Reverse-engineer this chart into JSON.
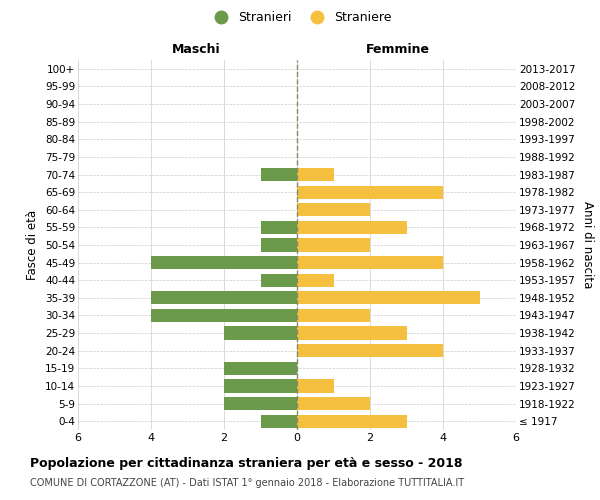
{
  "age_groups": [
    "100+",
    "95-99",
    "90-94",
    "85-89",
    "80-84",
    "75-79",
    "70-74",
    "65-69",
    "60-64",
    "55-59",
    "50-54",
    "45-49",
    "40-44",
    "35-39",
    "30-34",
    "25-29",
    "20-24",
    "15-19",
    "10-14",
    "5-9",
    "0-4"
  ],
  "birth_years": [
    "≤ 1917",
    "1918-1922",
    "1923-1927",
    "1928-1932",
    "1933-1937",
    "1938-1942",
    "1943-1947",
    "1948-1952",
    "1953-1957",
    "1958-1962",
    "1963-1967",
    "1968-1972",
    "1973-1977",
    "1978-1982",
    "1983-1987",
    "1988-1992",
    "1993-1997",
    "1998-2002",
    "2003-2007",
    "2008-2012",
    "2013-2017"
  ],
  "males": [
    0,
    0,
    0,
    0,
    0,
    0,
    1,
    0,
    0,
    1,
    1,
    4,
    1,
    4,
    4,
    2,
    0,
    2,
    2,
    2,
    1
  ],
  "females": [
    0,
    0,
    0,
    0,
    0,
    0,
    1,
    4,
    2,
    3,
    2,
    4,
    1,
    5,
    2,
    3,
    4,
    0,
    1,
    2,
    3
  ],
  "male_color": "#6a9a4a",
  "female_color": "#f5c040",
  "grid_color": "#cccccc",
  "center_line_color": "#888866",
  "background_color": "#ffffff",
  "title": "Popolazione per cittadinanza straniera per età e sesso - 2018",
  "subtitle": "COMUNE DI CORTAZZONE (AT) - Dati ISTAT 1° gennaio 2018 - Elaborazione TUTTITALIA.IT",
  "xlabel_left": "Maschi",
  "xlabel_right": "Femmine",
  "ylabel_left": "Fasce di età",
  "ylabel_right": "Anni di nascita",
  "legend_male": "Stranieri",
  "legend_female": "Straniere",
  "xlim": 6,
  "bar_height": 0.75
}
